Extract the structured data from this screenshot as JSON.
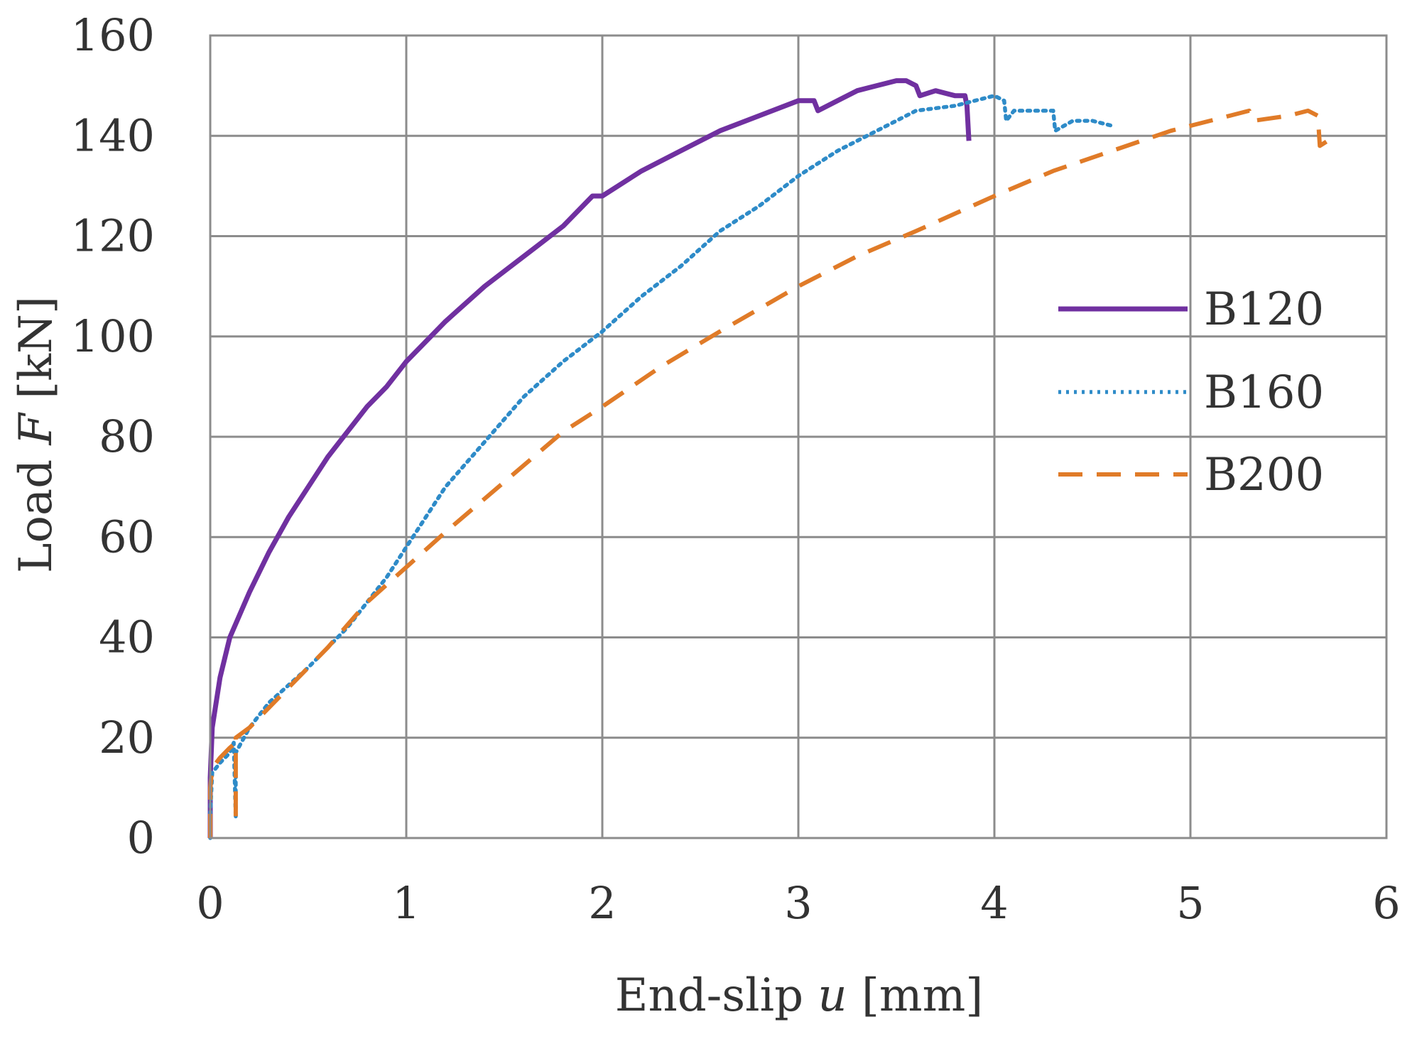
{
  "chart_data": {
    "type": "line",
    "xlabel": {
      "prefix": "End-slip ",
      "variable": "u",
      "suffix": " [mm]"
    },
    "ylabel": {
      "prefix": "Load ",
      "variable": "F",
      "suffix": " [kN]"
    },
    "xlim": [
      0,
      6
    ],
    "ylim": [
      0,
      160
    ],
    "x_ticks": [
      "0",
      "1",
      "2",
      "3",
      "4",
      "5",
      "6"
    ],
    "y_ticks": [
      "0",
      "20",
      "40",
      "60",
      "80",
      "100",
      "120",
      "140",
      "160"
    ],
    "grid": true,
    "legend_position": "right",
    "series": [
      {
        "name": "B120",
        "color": "#7030A0",
        "style": "solid",
        "points": [
          [
            0,
            0
          ],
          [
            0,
            12
          ],
          [
            0.01,
            22
          ],
          [
            0.05,
            32
          ],
          [
            0.1,
            40
          ],
          [
            0.2,
            49
          ],
          [
            0.3,
            57
          ],
          [
            0.4,
            64
          ],
          [
            0.5,
            70
          ],
          [
            0.6,
            76
          ],
          [
            0.7,
            81
          ],
          [
            0.8,
            86
          ],
          [
            0.9,
            90
          ],
          [
            1.0,
            95
          ],
          [
            1.2,
            103
          ],
          [
            1.4,
            110
          ],
          [
            1.6,
            116
          ],
          [
            1.8,
            122
          ],
          [
            1.95,
            128
          ],
          [
            2.0,
            128
          ],
          [
            2.2,
            133
          ],
          [
            2.4,
            137
          ],
          [
            2.6,
            141
          ],
          [
            2.8,
            144
          ],
          [
            3.0,
            147
          ],
          [
            3.08,
            147
          ],
          [
            3.1,
            145
          ],
          [
            3.2,
            147
          ],
          [
            3.3,
            149
          ],
          [
            3.4,
            150
          ],
          [
            3.5,
            151
          ],
          [
            3.55,
            151
          ],
          [
            3.6,
            150
          ],
          [
            3.62,
            148
          ],
          [
            3.7,
            149
          ],
          [
            3.8,
            148
          ],
          [
            3.85,
            148
          ],
          [
            3.86,
            146
          ],
          [
            3.87,
            139
          ]
        ]
      },
      {
        "name": "B160",
        "color": "#2E8BC8",
        "style": "dotted",
        "points": [
          [
            0,
            0
          ],
          [
            0,
            5
          ],
          [
            0.01,
            13
          ],
          [
            0.05,
            15
          ],
          [
            0.1,
            17
          ],
          [
            0.12,
            19
          ],
          [
            0.13,
            4
          ],
          [
            0.13,
            17
          ],
          [
            0.2,
            22
          ],
          [
            0.3,
            27
          ],
          [
            0.5,
            34
          ],
          [
            0.7,
            42
          ],
          [
            0.9,
            52
          ],
          [
            1.0,
            58
          ],
          [
            1.2,
            70
          ],
          [
            1.4,
            79
          ],
          [
            1.6,
            88
          ],
          [
            1.8,
            95
          ],
          [
            2.0,
            101
          ],
          [
            2.2,
            108
          ],
          [
            2.4,
            114
          ],
          [
            2.6,
            121
          ],
          [
            2.8,
            126
          ],
          [
            3.0,
            132
          ],
          [
            3.2,
            137
          ],
          [
            3.4,
            141
          ],
          [
            3.6,
            145
          ],
          [
            3.8,
            146
          ],
          [
            3.9,
            147
          ],
          [
            4.0,
            148
          ],
          [
            4.05,
            147
          ],
          [
            4.06,
            143
          ],
          [
            4.1,
            145
          ],
          [
            4.2,
            145
          ],
          [
            4.3,
            145
          ],
          [
            4.31,
            141
          ],
          [
            4.4,
            143
          ],
          [
            4.5,
            143
          ],
          [
            4.6,
            142
          ]
        ]
      },
      {
        "name": "B200",
        "color": "#E07B28",
        "style": "dashed",
        "points": [
          [
            0,
            0
          ],
          [
            0,
            10
          ],
          [
            0.01,
            14
          ],
          [
            0.05,
            16
          ],
          [
            0.1,
            18
          ],
          [
            0.13,
            19
          ],
          [
            0.13,
            3
          ],
          [
            0.13,
            20
          ],
          [
            0.2,
            22
          ],
          [
            0.4,
            30
          ],
          [
            0.6,
            38
          ],
          [
            0.8,
            47
          ],
          [
            1.0,
            54
          ],
          [
            1.2,
            61
          ],
          [
            1.5,
            71
          ],
          [
            1.8,
            81
          ],
          [
            2.0,
            86
          ],
          [
            2.3,
            94
          ],
          [
            2.6,
            101
          ],
          [
            3.0,
            110
          ],
          [
            3.3,
            116
          ],
          [
            3.6,
            121
          ],
          [
            4.0,
            128
          ],
          [
            4.3,
            133
          ],
          [
            4.6,
            137
          ],
          [
            4.9,
            141
          ],
          [
            5.2,
            144
          ],
          [
            5.3,
            145
          ],
          [
            5.32,
            143
          ],
          [
            5.5,
            144
          ],
          [
            5.6,
            145
          ],
          [
            5.65,
            144
          ],
          [
            5.66,
            138
          ],
          [
            5.7,
            139
          ]
        ]
      }
    ]
  }
}
